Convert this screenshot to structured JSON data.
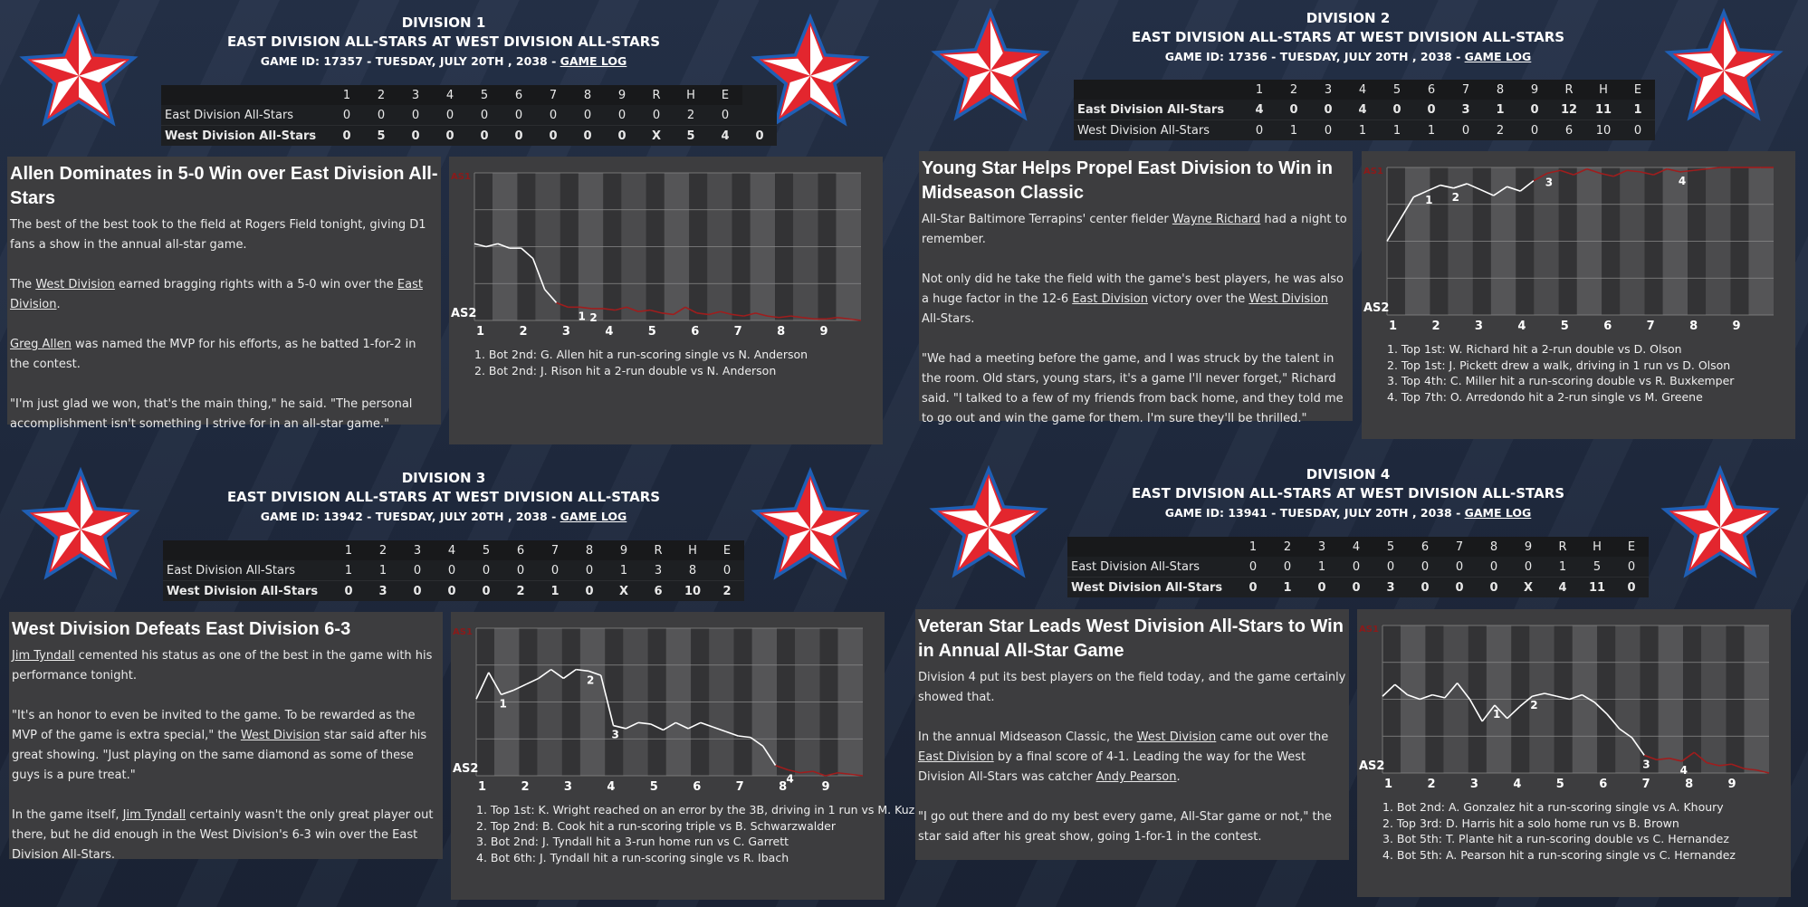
{
  "colors": {
    "accent_red": "#e3262e",
    "star_blue": "#1f5fb5",
    "wp_line_white": "#ffffff",
    "wp_line_red": "#a01d1d",
    "panel_bg": "#3d3d3f"
  },
  "games": [
    {
      "division": "DIVISION 1",
      "matchup": "EAST DIVISION ALL-STARS AT WEST DIVISION ALL-STARS",
      "game_info": "GAME ID: 17357 - TUESDAY, JULY 20TH , 2038 - ",
      "game_log_label": "GAME LOG",
      "box": {
        "columns": [
          "",
          "1",
          "2",
          "3",
          "4",
          "5",
          "6",
          "7",
          "8",
          "9",
          "R",
          "H",
          "E"
        ],
        "rows": [
          {
            "team": "East Division All-Stars",
            "cells": [
              "0",
              "0",
              "0",
              "0",
              "0",
              "0",
              "0",
              "0",
              "0",
              "0",
              "2",
              "0"
            ],
            "bold": false
          },
          {
            "team": "West Division All-Stars",
            "cells": [
              "0",
              "5",
              "0",
              "0",
              "0",
              "0",
              "0",
              "0",
              "0",
              "X",
              "5",
              "4",
              "0"
            ],
            "bold": true
          }
        ]
      },
      "article": {
        "headline": "Allen Dominates in 5-0 Win over East Division All-Stars",
        "paragraphs": [
          [
            {
              "t": "The best of the best took to the field at Rogers Field tonight, giving D1 fans a show in the annual all-star game."
            }
          ],
          [
            {
              "t": "The "
            },
            {
              "t": "West Division",
              "link": true
            },
            {
              "t": " earned bragging rights with a 5-0 win over the "
            },
            {
              "t": "East Division",
              "link": true
            },
            {
              "t": "."
            }
          ],
          [
            {
              "t": "Greg Allen",
              "link": true
            },
            {
              "t": " was named the MVP for his efforts, as he batted 1-for-2 in the contest."
            }
          ],
          [
            {
              "t": "\"I'm just glad we won, that's the main thing,\" he said. \"The personal accomplishment isn't something I strive for in an all-star game.\""
            }
          ]
        ]
      },
      "chart_data": {
        "type": "line",
        "xlabel_top": "AS1",
        "xlabel_bottom": "AS2",
        "x_ticks": [
          "1",
          "2",
          "3",
          "4",
          "5",
          "6",
          "7",
          "8",
          "9"
        ],
        "series": [
          {
            "values": [
              0.52,
              0.5,
              0.52,
              0.49,
              0.49,
              0.42,
              0.21,
              0.12,
              0.09,
              0.09,
              0.08,
              0.08,
              0.07,
              0.09,
              0.06,
              0.07,
              0.05,
              0.04,
              0.09,
              0.05,
              0.04,
              0.06,
              0.04,
              0.03,
              0.05,
              0.03,
              0.02,
              0.03,
              0.02,
              0.01,
              0.01,
              0.02,
              0.01,
              0.0
            ]
          }
        ],
        "annotations": [
          "1",
          "2"
        ]
      },
      "plays": [
        "1. Bot 2nd: G. Allen hit a run-scoring single vs N. Anderson",
        "2. Bot 2nd: J. Rison hit a 2-run double vs N. Anderson"
      ]
    },
    {
      "division": "DIVISION 2",
      "matchup": "EAST DIVISION ALL-STARS AT WEST DIVISION ALL-STARS",
      "game_info": "GAME ID: 17356 - TUESDAY, JULY 20TH , 2038 - ",
      "game_log_label": "GAME LOG",
      "box": {
        "columns": [
          "",
          "1",
          "2",
          "3",
          "4",
          "5",
          "6",
          "7",
          "8",
          "9",
          "R",
          "H",
          "E"
        ],
        "rows": [
          {
            "team": "East Division All-Stars",
            "cells": [
              "4",
              "0",
              "0",
              "4",
              "0",
              "0",
              "3",
              "1",
              "0",
              "12",
              "11",
              "1"
            ],
            "bold": true
          },
          {
            "team": "West Division All-Stars",
            "cells": [
              "0",
              "1",
              "0",
              "1",
              "1",
              "1",
              "0",
              "2",
              "0",
              "6",
              "10",
              "0"
            ],
            "bold": false
          }
        ]
      },
      "article": {
        "headline": "Young Star Helps Propel East Division to Win in Midseason Classic",
        "paragraphs": [
          [
            {
              "t": "All-Star Baltimore Terrapins' center fielder "
            },
            {
              "t": "Wayne Richard",
              "link": true
            },
            {
              "t": " had a night to remember."
            }
          ],
          [
            {
              "t": "Not only did he take the field with the game's best players, he was also a huge factor in the 12-6 "
            },
            {
              "t": "East Division",
              "link": true
            },
            {
              "t": " victory over the "
            },
            {
              "t": "West Division",
              "link": true
            },
            {
              "t": " All-Stars."
            }
          ],
          [
            {
              "t": "\"We had a meeting before the game, and I was struck by the talent in the room. Old stars, young stars, it's a game I'll never forget,\" Richard said. \"I talked to a few of my friends from back home, and they told me to go out and win the game for them. I'm sure they'll be thrilled.\""
            }
          ]
        ]
      },
      "chart_data": {
        "type": "line",
        "xlabel_top": "AS1",
        "xlabel_bottom": "AS2",
        "x_ticks": [
          "1",
          "2",
          "3",
          "4",
          "5",
          "6",
          "7",
          "8",
          "9"
        ],
        "series": [
          {
            "values": [
              0.5,
              0.65,
              0.8,
              0.84,
              0.88,
              0.86,
              0.89,
              0.85,
              0.81,
              0.87,
              0.84,
              0.91,
              0.96,
              0.98,
              0.95,
              0.99,
              0.96,
              0.94,
              0.98,
              0.97,
              0.95,
              0.99,
              0.97,
              0.98,
              0.99,
              1.0,
              1.0,
              1.0,
              1.0,
              1.0
            ]
          }
        ],
        "annotations": [
          "1",
          "2",
          "3",
          "4"
        ]
      },
      "plays": [
        "1. Top 1st: W. Richard hit a 2-run double vs D. Olson",
        "2. Top 1st: J. Pickett drew a walk, driving in 1 run vs D. Olson",
        "3. Top 4th: C. Miller hit a run-scoring double vs R. Buxkemper",
        "4. Top 7th: O. Arredondo hit a 2-run single vs M. Greene"
      ]
    },
    {
      "division": "DIVISION 3",
      "matchup": "EAST DIVISION ALL-STARS AT WEST DIVISION ALL-STARS",
      "game_info": "GAME ID: 13942 - TUESDAY, JULY 20TH , 2038 - ",
      "game_log_label": "GAME LOG",
      "box": {
        "columns": [
          "",
          "1",
          "2",
          "3",
          "4",
          "5",
          "6",
          "7",
          "8",
          "9",
          "R",
          "H",
          "E"
        ],
        "rows": [
          {
            "team": "East Division All-Stars",
            "cells": [
              "1",
              "1",
              "0",
              "0",
              "0",
              "0",
              "0",
              "0",
              "1",
              "3",
              "8",
              "0"
            ],
            "bold": false
          },
          {
            "team": "West Division All-Stars",
            "cells": [
              "0",
              "3",
              "0",
              "0",
              "0",
              "2",
              "1",
              "0",
              "X",
              "6",
              "10",
              "2"
            ],
            "bold": true
          }
        ]
      },
      "article": {
        "headline": "West Division Defeats East Division 6-3",
        "paragraphs": [
          [
            {
              "t": "Jim Tyndall",
              "link": true
            },
            {
              "t": " cemented his status as one of the best in the game with his performance tonight."
            }
          ],
          [
            {
              "t": "\"It's an honor to even be invited to the game. To be rewarded as the MVP of the game is extra special,\" the "
            },
            {
              "t": "West Division",
              "link": true
            },
            {
              "t": " star said after his great showing. \"Just playing on the same diamond as some of these guys is a pure treat.\""
            }
          ],
          [
            {
              "t": "In the game itself, "
            },
            {
              "t": "Jim Tyndall",
              "link": true
            },
            {
              "t": " certainly wasn't the only great player out there, but he did enough in the West Division's 6-3 win over the East Division All-Stars."
            }
          ]
        ]
      },
      "chart_data": {
        "type": "line",
        "xlabel_top": "AS1",
        "xlabel_bottom": "AS2",
        "x_ticks": [
          "1",
          "2",
          "3",
          "4",
          "5",
          "6",
          "7",
          "8",
          "9"
        ],
        "series": [
          {
            "values": [
              0.52,
              0.7,
              0.55,
              0.58,
              0.62,
              0.66,
              0.72,
              0.66,
              0.72,
              0.71,
              0.68,
              0.34,
              0.32,
              0.36,
              0.35,
              0.31,
              0.36,
              0.32,
              0.36,
              0.33,
              0.3,
              0.27,
              0.26,
              0.2,
              0.07,
              0.04,
              0.02,
              0.03,
              0.0,
              0.02,
              0.01,
              0.0
            ]
          }
        ],
        "annotations": [
          "1",
          "2",
          "3",
          "4"
        ]
      },
      "plays": [
        "1. Top 1st: K. Wright reached on an error by the 3B, driving in 1 run vs M. Kuz",
        "2. Top 2nd: B. Cook hit a run-scoring triple vs B. Schwarzwalder",
        "3. Bot 2nd: J. Tyndall hit a 3-run home run vs C. Garrett",
        "4. Bot 6th: J. Tyndall hit a run-scoring single vs R. Ibach"
      ]
    },
    {
      "division": "DIVISION 4",
      "matchup": "EAST DIVISION ALL-STARS AT WEST DIVISION ALL-STARS",
      "game_info": "GAME ID: 13941 - TUESDAY, JULY 20TH , 2038 - ",
      "game_log_label": "GAME LOG",
      "box": {
        "columns": [
          "",
          "1",
          "2",
          "3",
          "4",
          "5",
          "6",
          "7",
          "8",
          "9",
          "R",
          "H",
          "E"
        ],
        "rows": [
          {
            "team": "East Division All-Stars",
            "cells": [
              "0",
              "0",
              "1",
              "0",
              "0",
              "0",
              "0",
              "0",
              "0",
              "1",
              "5",
              "0"
            ],
            "bold": false
          },
          {
            "team": "West Division All-Stars",
            "cells": [
              "0",
              "1",
              "0",
              "0",
              "3",
              "0",
              "0",
              "0",
              "X",
              "4",
              "11",
              "0"
            ],
            "bold": true
          }
        ]
      },
      "article": {
        "headline": "Veteran Star Leads West Division All-Stars to Win in Annual All-Star Game",
        "paragraphs": [
          [
            {
              "t": "Division 4 put its best players on the field today, and the game certainly showed that."
            }
          ],
          [
            {
              "t": "In the annual Midseason Classic, the "
            },
            {
              "t": "West Division",
              "link": true
            },
            {
              "t": " came out over the "
            },
            {
              "t": "East Division",
              "link": true
            },
            {
              "t": " by a final score of 4-1. Leading the way for the West Division All-Stars was catcher "
            },
            {
              "t": "Andy Pearson",
              "link": true
            },
            {
              "t": "."
            }
          ],
          [
            {
              "t": "\"I go out there and do my best every game, All-Star game or not,\" the star said after his great show, going 1-for-1 in the contest."
            }
          ]
        ]
      },
      "chart_data": {
        "type": "line",
        "xlabel_top": "AS1",
        "xlabel_bottom": "AS2",
        "x_ticks": [
          "1",
          "2",
          "3",
          "4",
          "5",
          "6",
          "7",
          "8",
          "9"
        ],
        "series": [
          {
            "values": [
              0.52,
              0.6,
              0.53,
              0.5,
              0.53,
              0.51,
              0.61,
              0.5,
              0.35,
              0.46,
              0.37,
              0.45,
              0.52,
              0.54,
              0.52,
              0.5,
              0.53,
              0.48,
              0.4,
              0.3,
              0.24,
              0.12,
              0.09,
              0.1,
              0.08,
              0.14,
              0.07,
              0.05,
              0.06,
              0.03,
              0.02,
              0.0
            ]
          }
        ],
        "annotations": [
          "1",
          "2",
          "3",
          "4"
        ]
      },
      "plays": [
        "1. Bot 2nd: A. Gonzalez hit a run-scoring single vs A. Khoury",
        "2. Top 3rd: D. Harris hit a solo home run vs B. Brown",
        "3. Bot 5th: T. Plante hit a run-scoring double vs C. Hernandez",
        "4. Bot 5th: A. Pearson hit a run-scoring single vs C. Hernandez"
      ]
    }
  ]
}
